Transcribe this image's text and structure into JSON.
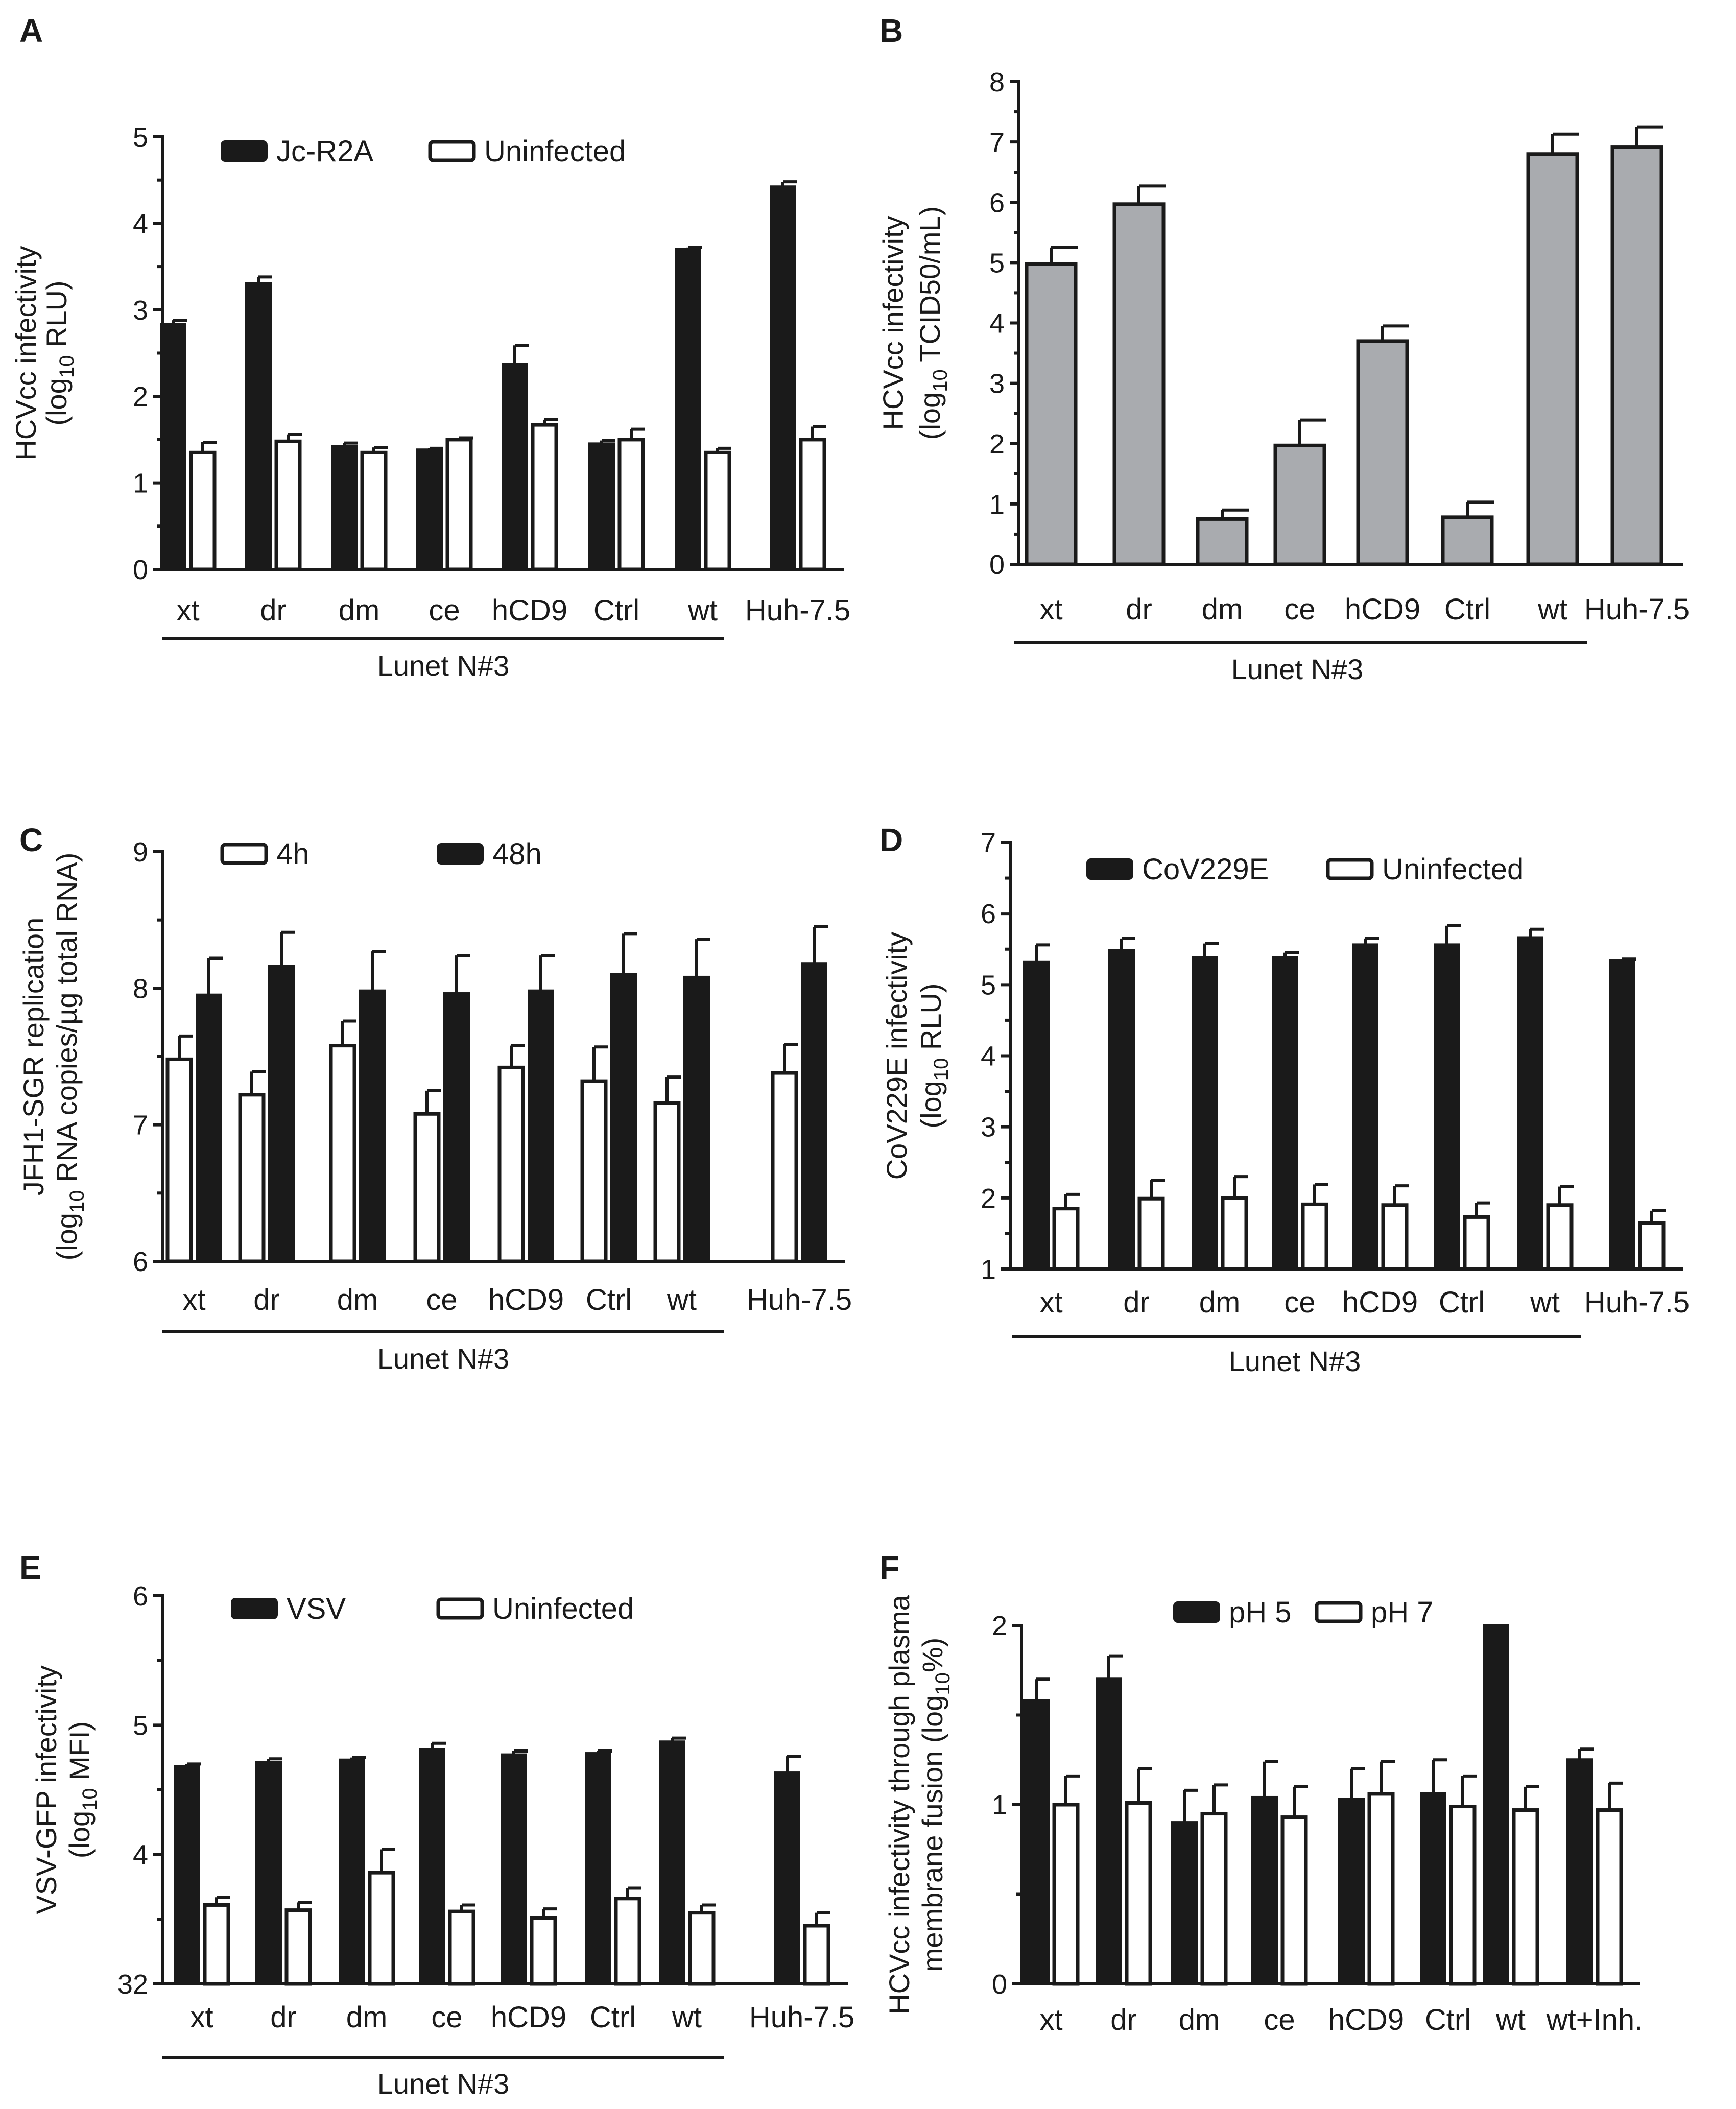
{
  "figure": {
    "background": "#ffffff"
  },
  "chart_data": [
    {
      "panel": "A",
      "type": "bar",
      "categories": [
        "xt",
        "dr",
        "dm",
        "ce",
        "hCD9",
        "Ctrl",
        "wt",
        "Huh-7.5"
      ],
      "group_label": "Lunet N#3",
      "ylabel_lines": [
        "HCVcc infectivity",
        "(log10 RLU)"
      ],
      "ylim": [
        0,
        5
      ],
      "yticks": [
        "0",
        "1",
        "2",
        "3",
        "4",
        "5"
      ],
      "legend": [
        "Jc-R2A",
        "Uninfected"
      ],
      "series": [
        {
          "name": "Jc-R2A",
          "style": "solid",
          "values": [
            2.83,
            3.3,
            1.42,
            1.38,
            2.37,
            1.45,
            3.7,
            4.42
          ],
          "errors": [
            0.05,
            0.08,
            0.04,
            0.02,
            0.22,
            0.04,
            0.02,
            0.06
          ]
        },
        {
          "name": "Uninfected",
          "style": "open",
          "values": [
            1.35,
            1.48,
            1.35,
            1.5,
            1.67,
            1.5,
            1.35,
            1.5
          ],
          "errors": [
            0.12,
            0.08,
            0.06,
            0.02,
            0.06,
            0.12,
            0.05,
            0.15
          ]
        }
      ]
    },
    {
      "panel": "B",
      "type": "bar",
      "categories": [
        "xt",
        "dr",
        "dm",
        "ce",
        "hCD9",
        "Ctrl",
        "wt",
        "Huh-7.5"
      ],
      "group_label": "Lunet N#3",
      "ylabel_lines": [
        "HCVcc infectivity",
        "(log10 TCID50/mL)"
      ],
      "ylim": [
        0,
        8
      ],
      "yticks": [
        "0",
        "1",
        "2",
        "3",
        "4",
        "5",
        "6",
        "7",
        "8"
      ],
      "legend": [],
      "series": [
        {
          "name": "TCID50",
          "style": "grey",
          "values": [
            4.98,
            5.97,
            0.75,
            1.97,
            3.7,
            0.78,
            6.8,
            6.92
          ],
          "errors": [
            0.27,
            0.3,
            0.15,
            0.42,
            0.25,
            0.25,
            0.33,
            0.33
          ]
        }
      ]
    },
    {
      "panel": "C",
      "type": "bar",
      "categories": [
        "xt",
        "dr",
        "dm",
        "ce",
        "hCD9",
        "Ctrl",
        "wt",
        "Huh-7.5"
      ],
      "group_label": "Lunet N#3",
      "ylabel_lines": [
        "JFH1-SGR replication",
        "(log10 RNA copies/µg total RNA)"
      ],
      "ylim": [
        6,
        9
      ],
      "yticks": [
        "6",
        "7",
        "8",
        "9"
      ],
      "legend": [
        "4h",
        "48h"
      ],
      "series": [
        {
          "name": "4h",
          "style": "open",
          "values": [
            7.48,
            7.22,
            7.58,
            7.08,
            7.42,
            7.32,
            7.16,
            7.38
          ],
          "errors": [
            0.17,
            0.17,
            0.18,
            0.17,
            0.16,
            0.25,
            0.19,
            0.21
          ]
        },
        {
          "name": "48h",
          "style": "solid",
          "values": [
            7.95,
            8.16,
            7.98,
            7.96,
            7.98,
            8.1,
            8.08,
            8.18
          ],
          "errors": [
            0.27,
            0.25,
            0.29,
            0.28,
            0.26,
            0.3,
            0.28,
            0.27
          ]
        }
      ]
    },
    {
      "panel": "D",
      "type": "bar",
      "categories": [
        "xt",
        "dr",
        "dm",
        "ce",
        "hCD9",
        "Ctrl",
        "wt",
        "Huh-7.5"
      ],
      "group_label": "Lunet N#3",
      "ylabel_lines": [
        "CoV229E infectivity",
        "(log10 RLU)"
      ],
      "ylim": [
        1,
        7
      ],
      "yticks": [
        "1",
        "2",
        "3",
        "4",
        "5",
        "6",
        "7"
      ],
      "legend": [
        "CoV229E",
        "Uninfected"
      ],
      "series": [
        {
          "name": "CoV229E",
          "style": "solid",
          "values": [
            5.32,
            5.48,
            5.38,
            5.38,
            5.56,
            5.56,
            5.66,
            5.34
          ],
          "errors": [
            0.24,
            0.17,
            0.2,
            0.07,
            0.09,
            0.27,
            0.12,
            0.02
          ]
        },
        {
          "name": "Uninfected",
          "style": "open",
          "values": [
            1.85,
            1.99,
            2.0,
            1.91,
            1.9,
            1.73,
            1.9,
            1.65
          ],
          "errors": [
            0.2,
            0.26,
            0.3,
            0.28,
            0.27,
            0.2,
            0.26,
            0.17
          ]
        }
      ]
    },
    {
      "panel": "E",
      "type": "bar",
      "categories": [
        "xt",
        "dr",
        "dm",
        "ce",
        "hCD9",
        "Ctrl",
        "wt",
        "Huh-7.5"
      ],
      "group_label": "Lunet N#3",
      "ylabel_lines": [
        "VSV-GFP infectivity",
        "(log10 MFI)"
      ],
      "ylim": [
        3,
        6
      ],
      "yticks": [
        "3",
        "4",
        "5",
        "6"
      ],
      "y_bottom_label": "32",
      "legend": [
        "VSV",
        "Uninfected"
      ],
      "series": [
        {
          "name": "VSV",
          "style": "solid",
          "values": [
            4.68,
            4.71,
            4.73,
            4.81,
            4.77,
            4.78,
            4.87,
            4.63
          ],
          "errors": [
            0.02,
            0.03,
            0.02,
            0.05,
            0.03,
            0.02,
            0.03,
            0.13
          ]
        },
        {
          "name": "Uninfected",
          "style": "open",
          "values": [
            3.61,
            3.57,
            3.86,
            3.56,
            3.51,
            3.66,
            3.55,
            3.45
          ],
          "errors": [
            0.06,
            0.06,
            0.18,
            0.05,
            0.07,
            0.08,
            0.06,
            0.1
          ]
        }
      ]
    },
    {
      "panel": "F",
      "type": "bar",
      "categories": [
        "xt",
        "dr",
        "dm",
        "ce",
        "hCD9",
        "Ctrl",
        "wt",
        "wt+Inh."
      ],
      "group_label": "",
      "ylabel_lines": [
        "HCVcc infectivity through plasma",
        "membrane fusion (log10%)"
      ],
      "ylim": [
        0,
        2
      ],
      "yticks": [
        "0",
        "1",
        "2"
      ],
      "legend": [
        "pH 5",
        "pH 7"
      ],
      "series": [
        {
          "name": "pH 5",
          "style": "solid",
          "values": [
            1.58,
            1.7,
            0.9,
            1.04,
            1.03,
            1.06,
            2.0,
            1.25
          ],
          "errors": [
            0.12,
            0.13,
            0.18,
            0.2,
            0.17,
            0.19,
            0.0,
            0.06
          ]
        },
        {
          "name": "pH 7",
          "style": "open",
          "values": [
            1.0,
            1.01,
            0.95,
            0.93,
            1.06,
            0.99,
            0.97,
            0.97
          ],
          "errors": [
            0.16,
            0.19,
            0.16,
            0.17,
            0.18,
            0.17,
            0.13,
            0.15
          ]
        }
      ]
    }
  ]
}
